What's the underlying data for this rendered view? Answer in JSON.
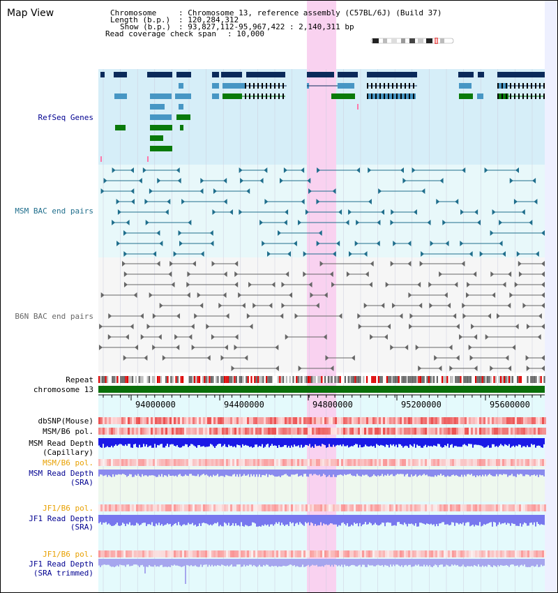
{
  "header": {
    "title": "Map View",
    "chromosome_label": "Chromosome",
    "chromosome_value": ": Chromosome 13, reference assembly (C57BL/6J) (Build 37)",
    "length_label": "Length (b.p.)",
    "length_value": ": 120,284,312",
    "show_label": "Show (b.p.)",
    "show_value": ": 93,827,112-95,967,422 : 2,140,311 bp",
    "coverage_label": "Read coverage check span",
    "coverage_value": ": 10,000"
  },
  "tracks": {
    "refseq": "RefSeq Genes",
    "msm_bac": "MSM BAC end pairs",
    "b6n_bac": "B6N BAC end pairs",
    "repeat": "Repeat",
    "chromosome": "chromosome 13",
    "dbsnp": "dbSNP(Mouse)",
    "msm_b6_pol_1": "MSM/B6 pol.",
    "msm_depth_cap_1": "MSM Read Depth",
    "msm_depth_cap_2": "(Capillary)",
    "msm_b6_pol_2": "MSM/B6 pol.",
    "msm_depth_sra_1": "MSM Read Depth",
    "msm_depth_sra_2": "(SRA)",
    "jf1_b6_pol_1": "JF1/B6 pol.",
    "jf1_depth_sra_1": "JF1 Read Depth",
    "jf1_depth_sra_2": "(SRA)",
    "jf1_b6_pol_2": "JF1/B6 pol.",
    "jf1_depth_trim_1": "JF1 Read Depth",
    "jf1_depth_trim_2": "(SRA trimmed)"
  },
  "axis": {
    "ticks": [
      "94000000",
      "94400000",
      "94800000",
      "95200000",
      "95600000"
    ]
  },
  "colors": {
    "highlight": "#f9d2f0",
    "refseq_bg": "#d6eef8",
    "navy": "#0b2a5a",
    "blue": "#4796c4",
    "green": "#0a7a0a",
    "msm_bac": "#1f6e8c",
    "b6n_bac": "#666666",
    "chromosome": "#0a6e0a",
    "depth_dark": "#1a1ae6",
    "depth_light": "#7777ee",
    "orange_label": "#e8a000",
    "navy_label": "#000090",
    "teal_label": "#1f6e8c"
  }
}
